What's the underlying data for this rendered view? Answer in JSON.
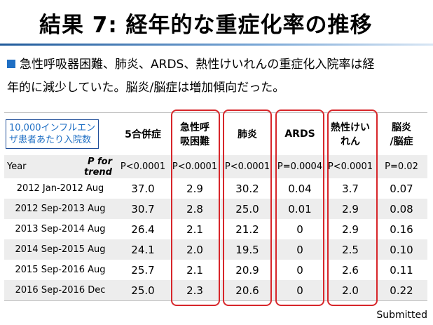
{
  "title": "結果 7: 経年的な重症化率の推移",
  "summary_line1": "急性呼吸器困難、肺炎、ARDS、熱性けいれんの重症化入院率は経",
  "summary_line2": "年的に減少していた。脳炎/脳症は増加傾向だった。",
  "bullet_color": "#1f6fc4",
  "highlight_color": "#d7262a",
  "table": {
    "unit_label_1": "10,000インフルエン",
    "unit_label_2": "ザ患者あたり入院数",
    "columns": [
      {
        "line1": "5合併症",
        "line2": ""
      },
      {
        "line1": "急性呼",
        "line2": "吸困難"
      },
      {
        "line1": "肺炎",
        "line2": ""
      },
      {
        "line1": "ARDS",
        "line2": ""
      },
      {
        "line1": "熱性けい",
        "line2": "れん"
      },
      {
        "line1": "脳炎",
        "line2": "/脳症"
      }
    ],
    "year_label": "Year",
    "ptrend_label": "P for trend",
    "p_values": [
      "P<0.0001",
      "P<0.0001",
      "P<0.0001",
      "P=0.0004",
      "P<0.0001",
      "P=0.02"
    ],
    "rows": [
      {
        "period": "2012 Jan-2012 Aug",
        "values": [
          "37.0",
          "2.9",
          "30.2",
          "0.04",
          "3.7",
          "0.07"
        ]
      },
      {
        "period": "2012 Sep-2013 Aug",
        "values": [
          "30.7",
          "2.8",
          "25.0",
          "0.01",
          "2.9",
          "0.08"
        ]
      },
      {
        "period": "2013 Sep-2014 Aug",
        "values": [
          "26.4",
          "2.1",
          "21.2",
          "0",
          "2.9",
          "0.16"
        ]
      },
      {
        "period": "2014 Sep-2015 Aug",
        "values": [
          "24.1",
          "2.0",
          "19.5",
          "0",
          "2.5",
          "0.10"
        ]
      },
      {
        "period": "2015 Sep-2016 Aug",
        "values": [
          "25.7",
          "2.1",
          "20.9",
          "0",
          "2.6",
          "0.11"
        ]
      },
      {
        "period": "2016 Sep-2016 Dec",
        "values": [
          "25.0",
          "2.3",
          "20.6",
          "0",
          "2.0",
          "0.22"
        ]
      }
    ]
  },
  "footer": "Submitted"
}
